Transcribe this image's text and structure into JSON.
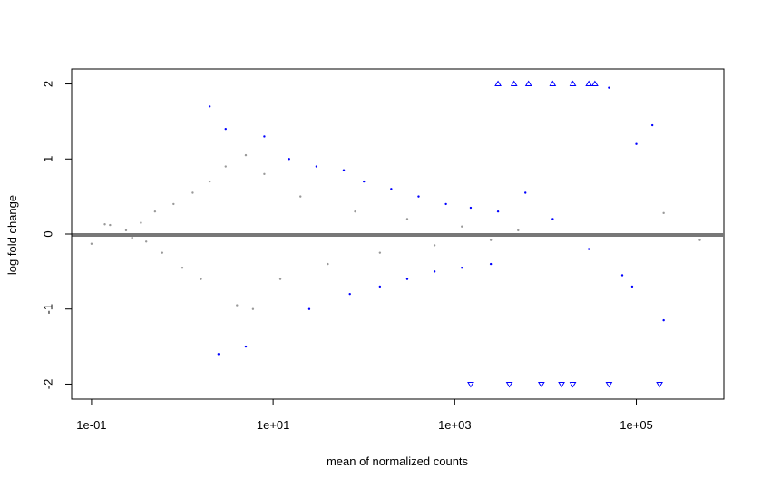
{
  "chart_data": {
    "type": "scatter",
    "title": "",
    "xlabel": "mean of normalized counts",
    "ylabel": "log fold change",
    "x_scale": "log10",
    "xlim": [
      0.0604,
      920000
    ],
    "ylim": [
      -2.2,
      2.2
    ],
    "x_ticks": [
      0.1,
      10,
      1000,
      100000
    ],
    "x_tick_labels": [
      "1e-01",
      "1e+01",
      "1e+03",
      "1e+05"
    ],
    "y_ticks": [
      -2,
      -1,
      0,
      1,
      2
    ],
    "y_tick_labels": [
      "-2",
      "-1",
      "0",
      "1",
      "2"
    ],
    "reference_line": {
      "y": 0,
      "color": "#777777"
    },
    "grid": false,
    "legend": "none",
    "colors": {
      "not_significant": "#999999",
      "significant": "#0000ff"
    },
    "series": [
      {
        "points": [
          [
            0.1,
            -0.13
          ],
          [
            0.14,
            0.13
          ],
          [
            0.16,
            0.12
          ],
          [
            0.24,
            0.05
          ],
          [
            0.28,
            -0.05
          ],
          [
            0.35,
            0.15
          ],
          [
            0.4,
            -0.1
          ],
          [
            0.5,
            0.3
          ],
          [
            0.6,
            -0.25
          ],
          [
            0.8,
            0.4
          ],
          [
            1.0,
            -0.45
          ],
          [
            1.3,
            0.55
          ],
          [
            1.6,
            -0.6
          ],
          [
            2.0,
            0.7
          ],
          [
            3.0,
            0.9
          ],
          [
            4.0,
            -0.95
          ],
          [
            5.0,
            1.05
          ],
          [
            6.0,
            -1.0
          ],
          [
            8.0,
            0.8
          ],
          [
            12,
            -0.6
          ],
          [
            20,
            0.5
          ],
          [
            40,
            -0.4
          ],
          [
            80,
            0.3
          ],
          [
            150,
            -0.25
          ],
          [
            300,
            0.2
          ],
          [
            600,
            -0.15
          ],
          [
            1200,
            0.1
          ],
          [
            2500,
            -0.08
          ],
          [
            5000,
            0.05
          ],
          [
            200000,
            0.28
          ],
          [
            500000,
            -0.08
          ]
        ]
      },
      {
        "points": [
          [
            2.0,
            1.7
          ],
          [
            2.5,
            -1.6
          ],
          [
            3.0,
            1.4
          ],
          [
            5.0,
            -1.5
          ],
          [
            8.0,
            1.3
          ],
          [
            15,
            1.0
          ],
          [
            30,
            0.9
          ],
          [
            60,
            0.85
          ],
          [
            100,
            0.7
          ],
          [
            200,
            0.6
          ],
          [
            400,
            0.5
          ],
          [
            800,
            0.4
          ],
          [
            1500,
            0.35
          ],
          [
            3000,
            0.3
          ],
          [
            25,
            -1.0
          ],
          [
            70,
            -0.8
          ],
          [
            150,
            -0.7
          ],
          [
            300,
            -0.6
          ],
          [
            600,
            -0.5
          ],
          [
            1200,
            -0.45
          ],
          [
            2500,
            -0.4
          ],
          [
            6000,
            0.55
          ],
          [
            12000,
            0.2
          ],
          [
            30000,
            -0.2
          ],
          [
            50000,
            1.95
          ],
          [
            70000,
            -0.55
          ],
          [
            90000,
            -0.7
          ],
          [
            100000,
            1.2
          ],
          [
            150000,
            1.45
          ],
          [
            200000,
            -1.15
          ]
        ]
      },
      {
        "points": [
          [
            3000,
            2.0
          ],
          [
            4500,
            2.0
          ],
          [
            6500,
            2.0
          ],
          [
            12000,
            2.0
          ],
          [
            20000,
            2.0
          ],
          [
            30000,
            2.0
          ],
          [
            35000,
            2.0
          ],
          [
            1500,
            -2.0
          ],
          [
            4000,
            -2.0
          ],
          [
            9000,
            -2.0
          ],
          [
            15000,
            -2.0
          ],
          [
            20000,
            -2.0
          ],
          [
            50000,
            -2.0
          ],
          [
            180000,
            -2.0
          ]
        ]
      }
    ]
  }
}
